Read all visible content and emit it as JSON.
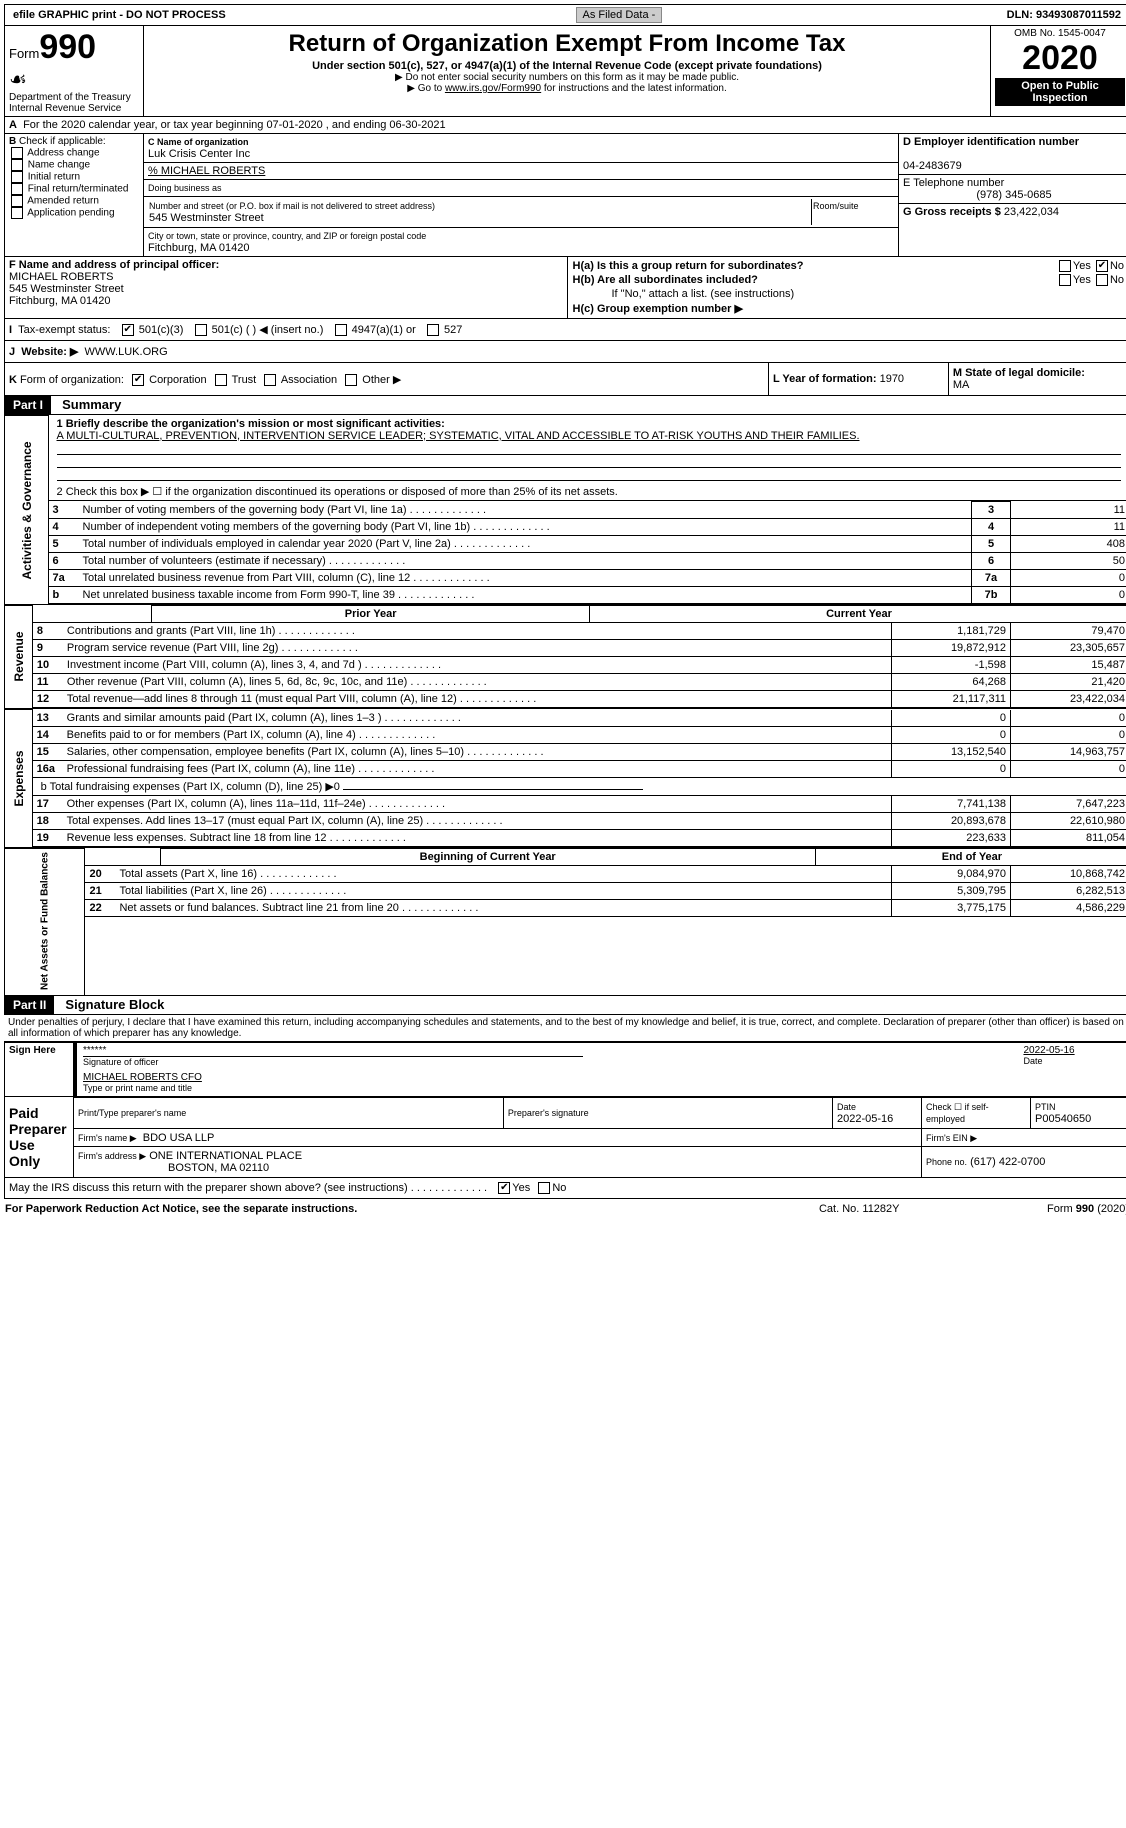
{
  "top": {
    "efile": "efile GRAPHIC print - DO NOT PROCESS",
    "asfiled": "As Filed Data -",
    "dln": "DLN: 93493087011592"
  },
  "header": {
    "form_prefix": "Form",
    "form_no": "990",
    "dept": "Department of the Treasury\nInternal Revenue Service",
    "title": "Return of Organization Exempt From Income Tax",
    "sub": "Under section 501(c), 527, or 4947(a)(1) of the Internal Revenue Code (except private foundations)",
    "note1": "▶ Do not enter social security numbers on this form as it may be made public.",
    "note2_pre": "▶ Go to ",
    "note2_link": "www.irs.gov/Form990",
    "note2_post": " for instructions and the latest information.",
    "omb": "OMB No. 1545-0047",
    "year": "2020",
    "open": "Open to Public Inspection"
  },
  "A": {
    "line": "For the 2020 calendar year, or tax year beginning 07-01-2020  , and ending 06-30-2021"
  },
  "B": {
    "label": "Check if applicable:",
    "items": [
      "Address change",
      "Name change",
      "Initial return",
      "Final return/terminated",
      "Amended return",
      "Application pending"
    ]
  },
  "C": {
    "name_label": "C Name of organization",
    "name": "Luk Crisis Center Inc",
    "care": "% MICHAEL ROBERTS",
    "dba_label": "Doing business as",
    "addr_label": "Number and street (or P.O. box if mail is not delivered to street address)",
    "room_label": "Room/suite",
    "addr": "545 Westminster Street",
    "city_label": "City or town, state or province, country, and ZIP or foreign postal code",
    "city": "Fitchburg, MA  01420"
  },
  "D": {
    "label": "D Employer identification number",
    "value": "04-2483679"
  },
  "E": {
    "label": "E Telephone number",
    "value": "(978) 345-0685"
  },
  "G": {
    "label": "G Gross receipts $",
    "value": "23,422,034"
  },
  "F": {
    "label": "F  Name and address of principal officer:",
    "name": "MICHAEL ROBERTS",
    "addr1": "545 Westminster Street",
    "addr2": "Fitchburg, MA  01420"
  },
  "H": {
    "a": "H(a)  Is this a group return for subordinates?",
    "b": "H(b)  Are all subordinates included?",
    "note": "If \"No,\" attach a list. (see instructions)",
    "c": "H(c)  Group exemption number ▶",
    "yes": "Yes",
    "no": "No"
  },
  "I": {
    "label": "Tax-exempt status:",
    "opts": [
      "501(c)(3)",
      "501(c) (  ) ◀ (insert no.)",
      "4947(a)(1) or",
      "527"
    ]
  },
  "J": {
    "label": "Website: ▶",
    "value": "WWW.LUK.ORG"
  },
  "K": {
    "label": "Form of organization:",
    "opts": [
      "Corporation",
      "Trust",
      "Association",
      "Other ▶"
    ]
  },
  "L": {
    "label": "L Year of formation:",
    "value": "1970"
  },
  "M": {
    "label": "M State of legal domicile:",
    "value": "MA"
  },
  "partI": {
    "tag": "Part I",
    "title": "Summary"
  },
  "summary": {
    "l1_label": "1 Briefly describe the organization's mission or most significant activities:",
    "l1_text": "A MULTI-CULTURAL, PREVENTION, INTERVENTION SERVICE LEADER; SYSTEMATIC, VITAL AND ACCESSIBLE TO AT-RISK YOUTHS AND THEIR FAMILIES.",
    "l2": "2  Check this box ▶ ☐ if the organization discontinued its operations or disposed of more than 25% of its net assets.",
    "lines_top": [
      {
        "no": "3",
        "text": "Number of voting members of the governing body (Part VI, line 1a)",
        "box": "3",
        "val": "11"
      },
      {
        "no": "4",
        "text": "Number of independent voting members of the governing body (Part VI, line 1b)",
        "box": "4",
        "val": "11"
      },
      {
        "no": "5",
        "text": "Total number of individuals employed in calendar year 2020 (Part V, line 2a)",
        "box": "5",
        "val": "408"
      },
      {
        "no": "6",
        "text": "Total number of volunteers (estimate if necessary)",
        "box": "6",
        "val": "50"
      },
      {
        "no": "7a",
        "text": "Total unrelated business revenue from Part VIII, column (C), line 12",
        "box": "7a",
        "val": "0"
      },
      {
        "no": "b",
        "text": "Net unrelated business taxable income from Form 990-T, line 39",
        "box": "7b",
        "val": "0"
      }
    ],
    "col_prior": "Prior Year",
    "col_current": "Current Year",
    "col_begin": "Beginning of Current Year",
    "col_end": "End of Year",
    "revenue": [
      {
        "no": "8",
        "text": "Contributions and grants (Part VIII, line 1h)",
        "p": "1,181,729",
        "c": "79,470"
      },
      {
        "no": "9",
        "text": "Program service revenue (Part VIII, line 2g)",
        "p": "19,872,912",
        "c": "23,305,657"
      },
      {
        "no": "10",
        "text": "Investment income (Part VIII, column (A), lines 3, 4, and 7d )",
        "p": "-1,598",
        "c": "15,487"
      },
      {
        "no": "11",
        "text": "Other revenue (Part VIII, column (A), lines 5, 6d, 8c, 9c, 10c, and 11e)",
        "p": "64,268",
        "c": "21,420"
      },
      {
        "no": "12",
        "text": "Total revenue—add lines 8 through 11 (must equal Part VIII, column (A), line 12)",
        "p": "21,117,311",
        "c": "23,422,034"
      }
    ],
    "expenses": [
      {
        "no": "13",
        "text": "Grants and similar amounts paid (Part IX, column (A), lines 1–3 )",
        "p": "0",
        "c": "0"
      },
      {
        "no": "14",
        "text": "Benefits paid to or for members (Part IX, column (A), line 4)",
        "p": "0",
        "c": "0"
      },
      {
        "no": "15",
        "text": "Salaries, other compensation, employee benefits (Part IX, column (A), lines 5–10)",
        "p": "13,152,540",
        "c": "14,963,757"
      },
      {
        "no": "16a",
        "text": "Professional fundraising fees (Part IX, column (A), line 11e)",
        "p": "0",
        "c": "0"
      }
    ],
    "l16b": "b  Total fundraising expenses (Part IX, column (D), line 25) ▶0",
    "expenses2": [
      {
        "no": "17",
        "text": "Other expenses (Part IX, column (A), lines 11a–11d, 11f–24e)",
        "p": "7,741,138",
        "c": "7,647,223"
      },
      {
        "no": "18",
        "text": "Total expenses. Add lines 13–17 (must equal Part IX, column (A), line 25)",
        "p": "20,893,678",
        "c": "22,610,980"
      },
      {
        "no": "19",
        "text": "Revenue less expenses. Subtract line 18 from line 12",
        "p": "223,633",
        "c": "811,054"
      }
    ],
    "netassets": [
      {
        "no": "20",
        "text": "Total assets (Part X, line 16)",
        "p": "9,084,970",
        "c": "10,868,742"
      },
      {
        "no": "21",
        "text": "Total liabilities (Part X, line 26)",
        "p": "5,309,795",
        "c": "6,282,513"
      },
      {
        "no": "22",
        "text": "Net assets or fund balances. Subtract line 21 from line 20",
        "p": "3,775,175",
        "c": "4,586,229"
      }
    ]
  },
  "sidebar": {
    "gov": "Activities & Governance",
    "rev": "Revenue",
    "exp": "Expenses",
    "net": "Net Assets or Fund Balances"
  },
  "partII": {
    "tag": "Part II",
    "title": "Signature Block"
  },
  "sig": {
    "perjury": "Under penalties of perjury, I declare that I have examined this return, including accompanying schedules and statements, and to the best of my knowledge and belief, it is true, correct, and complete. Declaration of preparer (other than officer) is based on all information of which preparer has any knowledge.",
    "sign_here": "Sign Here",
    "stars": "******",
    "sig_officer": "Signature of officer",
    "date": "2022-05-16",
    "date_label": "Date",
    "officer_name": "MICHAEL ROBERTS CFO",
    "type_name": "Type or print name and title",
    "paid": "Paid Preparer Use Only",
    "prep_name_label": "Print/Type preparer's name",
    "prep_sig_label": "Preparer's signature",
    "prep_date": "2022-05-16",
    "check_self": "Check ☐ if self-employed",
    "ptin_label": "PTIN",
    "ptin": "P00540650",
    "firm_name_label": "Firm's name   ▶",
    "firm_name": "BDO USA LLP",
    "firm_ein_label": "Firm's EIN ▶",
    "firm_addr_label": "Firm's address ▶",
    "firm_addr": "ONE INTERNATIONAL PLACE",
    "firm_city": "BOSTON, MA  02110",
    "phone_label": "Phone no.",
    "phone": "(617) 422-0700",
    "discuss": "May the IRS discuss this return with the preparer shown above? (see instructions)",
    "yes": "Yes",
    "no": "No"
  },
  "footer": {
    "left": "For Paperwork Reduction Act Notice, see the separate instructions.",
    "mid": "Cat. No. 11282Y",
    "right_pre": "Form ",
    "right_bold": "990",
    "right_post": " (2020)"
  }
}
